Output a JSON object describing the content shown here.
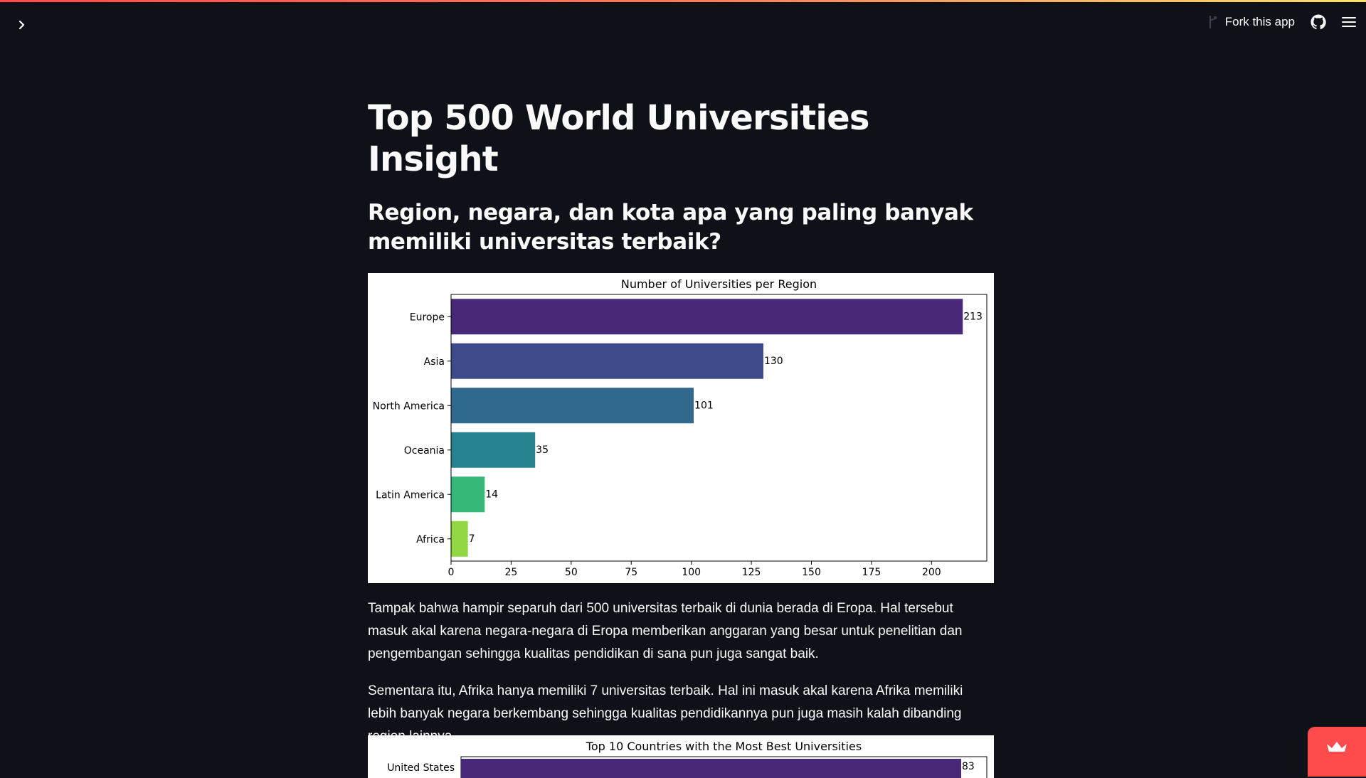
{
  "toolbar": {
    "fork_label": "Fork this app",
    "icons": [
      "fork-icon",
      "github-icon",
      "hamburger-menu-icon"
    ]
  },
  "sidebar": {
    "toggle_icon": "chevron-right-icon"
  },
  "page": {
    "title": "Top 500 World Universities Insight",
    "subheader": "Region, negara, dan kota apa yang paling banyak memiliki universitas terbaik?",
    "paragraph_1": "Tampak bahwa hampir separuh dari 500 universitas terbaik di dunia berada di Eropa. Hal tersebut masuk akal karena negara-negara di Eropa memberikan anggaran yang besar untuk penelitian dan pengembangan sehingga kualitas pendidikan di sana pun juga sangat baik.",
    "paragraph_2": "Sementara itu, Afrika hanya memiliki 7 universitas terbaik. Hal ini masuk akal karena Afrika memiliki lebih banyak negara berkembang sehingga kualitas pendidikannya pun juga masih kalah dibanding region lainnya."
  },
  "chart_data": [
    {
      "type": "bar",
      "orientation": "horizontal",
      "title": "Number of Universities per Region",
      "xlabel": "",
      "ylabel": "",
      "categories": [
        "Europe",
        "Asia",
        "North America",
        "Oceania",
        "Latin America",
        "Africa"
      ],
      "values": [
        213,
        130,
        101,
        35,
        14,
        7
      ],
      "colors": [
        "#482878",
        "#3e4a89",
        "#31688e",
        "#26828e",
        "#35b779",
        "#90d743"
      ],
      "xlim": [
        0,
        223
      ],
      "xticks": [
        0,
        25,
        50,
        75,
        100,
        125,
        150,
        175,
        200
      ],
      "grid": false
    },
    {
      "type": "bar",
      "orientation": "horizontal",
      "title": "Top 10 Countries with the Most Best Universities",
      "xlabel": "",
      "ylabel": "",
      "categories": [
        "United States"
      ],
      "values": [
        83
      ],
      "colors": [
        "#482878"
      ]
    }
  ],
  "colors": {
    "background": "#0e1117",
    "accent": "#ff4b4b",
    "text": "#fafafa"
  }
}
